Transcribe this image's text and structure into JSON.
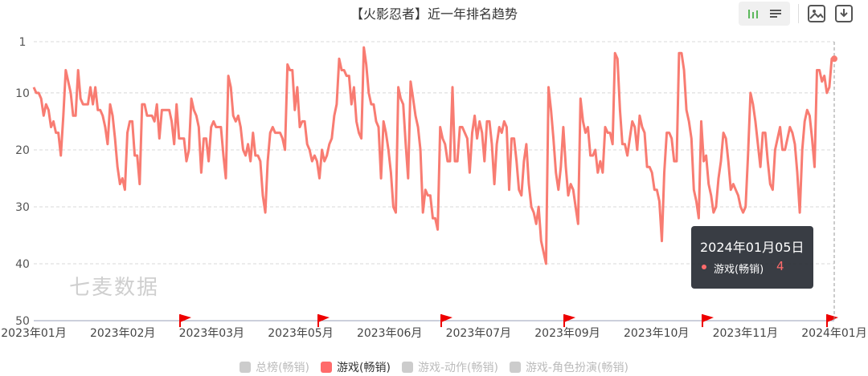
{
  "title": "【火影忍者】近一年排名趋势",
  "toolbar": {
    "icons": [
      "bar-chart-icon",
      "list-icon",
      "image-icon",
      "download-icon"
    ]
  },
  "watermark": "七麦数据",
  "tooltip": {
    "date": "2024年01月05日",
    "series": "游戏(畅销)",
    "value": "4",
    "color": "#ff6b6b"
  },
  "legend": [
    {
      "name": "总榜(畅销)",
      "color": "#cccccc",
      "active": false
    },
    {
      "name": "游戏(畅销)",
      "color": "#ff6b6b",
      "active": true
    },
    {
      "name": "游戏-动作(畅销)",
      "color": "#cccccc",
      "active": false
    },
    {
      "name": "游戏-角色扮演(畅销)",
      "color": "#cccccc",
      "active": false
    }
  ],
  "chart_data": {
    "type": "line",
    "title": "【火影忍者】近一年排名趋势",
    "y_inverted": true,
    "ylim": [
      1,
      50
    ],
    "yticks": [
      "1",
      "10",
      "20",
      "30",
      "40",
      "50"
    ],
    "xticks": [
      "2023年01月",
      "2023年02月",
      "2023年03月",
      "2023年05月",
      "2023年06月",
      "2023年07月",
      "2023年09月",
      "2023年10月",
      "2023年11月",
      "2024年01月"
    ],
    "grid": true,
    "series": [
      {
        "name": "游戏(畅销)",
        "color": "#f87c72",
        "values": [
          9,
          10,
          10,
          11,
          14,
          12,
          13,
          16,
          15,
          17,
          17,
          21,
          14,
          6,
          8,
          10,
          14,
          14,
          6,
          11,
          12,
          12,
          12,
          9,
          12,
          9,
          13,
          13,
          14,
          16,
          19,
          12,
          14,
          18,
          23,
          26,
          25,
          27,
          17,
          15,
          15,
          21,
          21,
          26,
          12,
          12,
          14,
          14,
          14,
          15,
          12,
          18,
          13,
          13,
          13,
          13,
          15,
          19,
          12,
          18,
          18,
          18,
          22,
          20,
          11,
          13,
          14,
          16,
          24,
          18,
          18,
          22,
          16,
          15,
          16,
          16,
          16,
          21,
          25,
          7,
          9,
          14,
          15,
          14,
          16,
          20,
          21,
          19,
          22,
          17,
          21,
          21,
          22,
          28,
          31,
          22,
          17,
          16,
          17,
          17,
          17,
          18,
          20,
          5,
          6,
          6,
          13,
          9,
          16,
          15,
          15,
          19,
          20,
          22,
          21,
          22,
          25,
          20,
          22,
          21,
          19,
          18,
          14,
          12,
          4,
          6,
          6,
          7,
          7,
          12,
          9,
          15,
          17,
          18,
          2,
          5,
          10,
          12,
          12,
          15,
          16,
          25,
          15,
          17,
          20,
          24,
          30,
          31,
          9,
          11,
          12,
          19,
          25,
          8,
          11,
          14,
          16,
          20,
          31,
          27,
          28,
          28,
          32,
          32,
          34,
          16,
          18,
          19,
          22,
          22,
          9,
          22,
          22,
          16,
          16,
          17,
          18,
          24,
          17,
          14,
          18,
          15,
          17,
          22,
          15,
          15,
          19,
          26,
          19,
          16,
          17,
          15,
          16,
          27,
          18,
          18,
          22,
          27,
          28,
          22,
          19,
          26,
          30,
          31,
          33,
          30,
          36,
          38,
          40,
          9,
          13,
          18,
          24,
          27,
          23,
          16,
          23,
          28,
          26,
          27,
          30,
          33,
          11,
          15,
          17,
          16,
          21,
          21,
          20,
          24,
          22,
          24,
          16,
          17,
          17,
          19,
          3,
          4,
          13,
          19,
          19,
          21,
          18,
          15,
          16,
          20,
          14,
          16,
          17,
          23,
          23,
          24,
          27,
          27,
          29,
          36,
          24,
          17,
          17,
          18,
          22,
          22,
          3,
          3,
          6,
          13,
          15,
          18,
          27,
          29,
          32,
          15,
          22,
          21,
          26,
          28,
          31,
          30,
          25,
          22,
          17,
          18,
          22,
          27,
          26,
          27,
          28,
          30,
          31,
          30,
          21,
          10,
          12,
          15,
          19,
          23,
          17,
          17,
          22,
          26,
          27,
          20,
          18,
          16,
          20,
          20,
          18,
          16,
          17,
          19,
          24,
          31,
          20,
          15,
          13,
          14,
          18,
          23,
          6,
          6,
          8,
          7,
          10,
          9,
          4,
          4
        ]
      }
    ]
  }
}
